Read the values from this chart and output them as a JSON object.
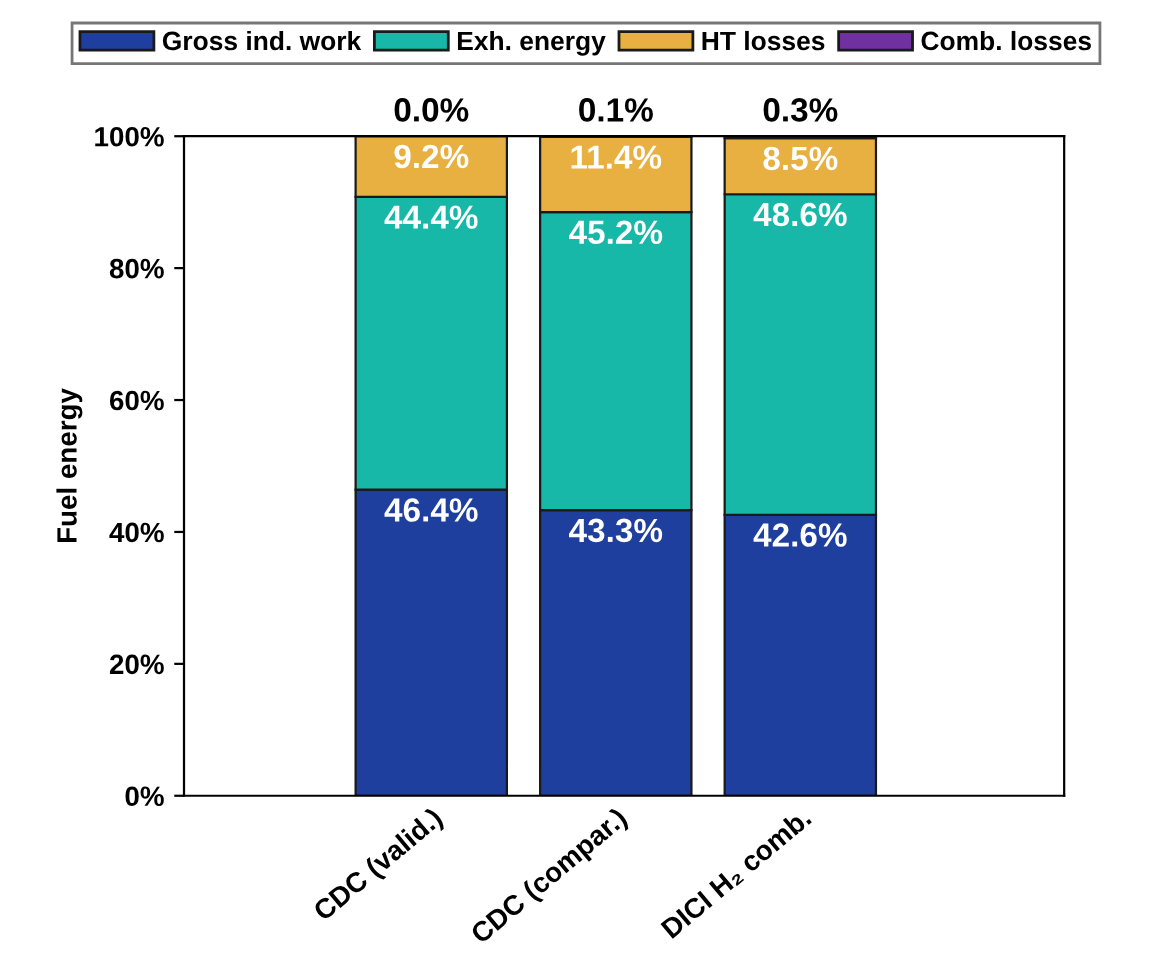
{
  "chart_data": {
    "type": "bar",
    "stacked": true,
    "ylabel": "Fuel energy",
    "categories": [
      "CDC (valid.)",
      "CDC (compar.)",
      "DICI H₂ comb."
    ],
    "series": [
      {
        "name": "Gross ind. work",
        "color": "#1f3f9e",
        "values": [
          46.4,
          43.3,
          42.6
        ],
        "value_labels": [
          "46.4%",
          "43.3%",
          "42.6%"
        ]
      },
      {
        "name": "Exh. energy",
        "color": "#17b8a8",
        "values": [
          44.4,
          45.2,
          48.6
        ],
        "value_labels": [
          "44.4%",
          "45.2%",
          "48.6%"
        ]
      },
      {
        "name": "HT losses",
        "color": "#e8b040",
        "values": [
          9.2,
          11.4,
          8.5
        ],
        "value_labels": [
          "9.2%",
          "11.4%",
          "8.5%"
        ]
      },
      {
        "name": "Comb. losses",
        "color": "#7030a0",
        "values": [
          0.0,
          0.1,
          0.3
        ],
        "value_labels": [
          "0.0%",
          "0.1%",
          "0.3%"
        ]
      }
    ],
    "ylim": [
      0,
      100
    ],
    "yticks": [
      {
        "value": 0,
        "label": "0%"
      },
      {
        "value": 20,
        "label": "20%"
      },
      {
        "value": 40,
        "label": "40%"
      },
      {
        "value": 60,
        "label": "60%"
      },
      {
        "value": 80,
        "label": "80%"
      },
      {
        "value": 100,
        "label": "100%"
      }
    ],
    "legend": "top",
    "grid": false
  }
}
